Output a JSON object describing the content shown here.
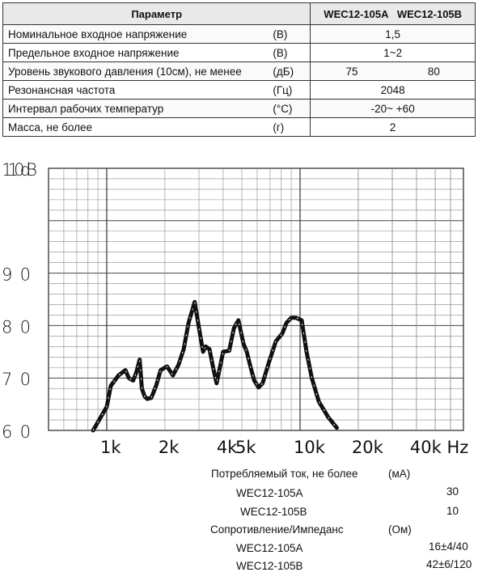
{
  "table": {
    "header_param": "Параметр",
    "header_models": "WEC12-105A   WEC12-105B",
    "rows": [
      {
        "name": "Номинальное входное напряжение",
        "unit": "(В)",
        "value": "1,5"
      },
      {
        "name": "Предельное входное напряжение",
        "unit": "(В)",
        "value": "1~2"
      },
      {
        "name": "Уровень звукового давления (10см), не менее",
        "unit": "(дБ)",
        "value_a": "75",
        "value_b": "80"
      },
      {
        "name": "Резонансная частота",
        "unit": "(Гц)",
        "value": "2048"
      },
      {
        "name": "Интервал рабочих температур",
        "unit": "(°С)",
        "value": "-20~ +60"
      },
      {
        "name": "Масса, не более",
        "unit": "(г)",
        "value": "2"
      }
    ]
  },
  "chart_data": {
    "type": "line",
    "ylim": [
      60,
      110
    ],
    "xlim": [
      500,
      70000
    ],
    "xscale": "log",
    "grid": true,
    "y_ticks": [
      "110dB",
      "90",
      "80",
      "70",
      "60"
    ],
    "x_ticks": [
      "1k",
      "2k",
      "4k",
      "5k",
      "10k",
      "20k",
      "40k Hz"
    ],
    "series": [
      {
        "x": [
          850,
          1000,
          1050,
          1150,
          1250,
          1300,
          1370,
          1420,
          1480,
          1520,
          1570,
          1620,
          1700,
          1800,
          1900,
          2050,
          2200,
          2350,
          2500,
          2650,
          2850,
          3050,
          3150,
          3250,
          3400,
          3550,
          3700,
          3850,
          4000,
          4300,
          4550,
          4800,
          5100,
          5300,
          5550,
          5800,
          6100,
          6400,
          6900,
          7500,
          8100,
          8500,
          9000,
          9500,
          10200,
          10800,
          11500,
          12500,
          14000,
          15500
        ],
        "y": [
          60,
          64.5,
          68.5,
          70.5,
          71.5,
          70,
          69.5,
          71,
          73.5,
          68,
          66.5,
          66,
          66.2,
          68.5,
          71.5,
          72.2,
          70.5,
          72.5,
          75.5,
          80.5,
          84.5,
          78,
          75,
          76,
          75.5,
          72,
          69,
          72,
          75,
          75.2,
          79.5,
          81,
          76.5,
          75,
          72,
          69.5,
          68.2,
          69,
          73,
          77,
          78.5,
          80.5,
          81.5,
          81.5,
          81,
          75,
          70,
          65.5,
          62.5,
          60.5
        ]
      }
    ]
  },
  "lower": {
    "current_label": "Потребляемый ток, не более",
    "current_unit": "(мА)",
    "current_a_label": "WEC12-105A",
    "current_a_value": "30",
    "current_b_label": "WEC12-105B",
    "current_b_value": "10",
    "imp_label": "Сопротивление/Импеданс",
    "imp_unit": "(Ом)",
    "imp_a_label": "WEC12-105A",
    "imp_a_value": "16±4/40",
    "imp_b_label": "WEC12-105B",
    "imp_b_value": "42±6/120"
  }
}
